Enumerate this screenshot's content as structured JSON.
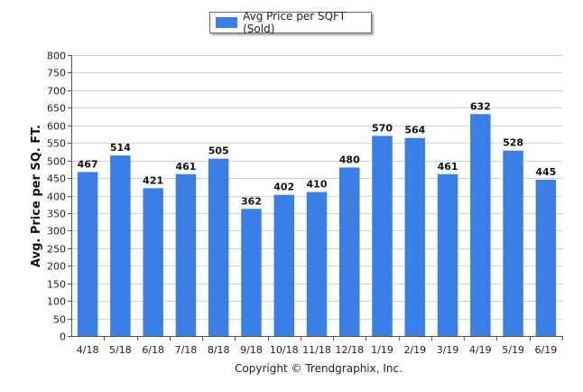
{
  "chart_data": {
    "type": "bar",
    "legend": "Avg Price per SQFT (Sold)",
    "ylabel": "Avg. Price per SQ. FT.",
    "xlabel": "",
    "ylim": [
      0,
      800
    ],
    "yticks": [
      0,
      50,
      100,
      150,
      200,
      250,
      300,
      350,
      400,
      450,
      500,
      550,
      600,
      650,
      700,
      750,
      800
    ],
    "grid": true,
    "legend_position": "top-center",
    "categories": [
      "4/18",
      "5/18",
      "6/18",
      "7/18",
      "8/18",
      "9/18",
      "10/18",
      "11/18",
      "12/18",
      "1/19",
      "2/19",
      "3/19",
      "4/19",
      "5/19",
      "6/19"
    ],
    "series": [
      {
        "name": "Avg Price per SQFT (Sold)",
        "values": [
          467,
          514,
          421,
          461,
          505,
          362,
          402,
          410,
          480,
          570,
          564,
          461,
          632,
          528,
          445
        ],
        "color": "#3a7fe6"
      }
    ]
  },
  "footer": {
    "copyright": "Copyright © Trendgraphix, Inc."
  },
  "colors": {
    "bar": "#3a7fe6",
    "grid": "#d4d4d4",
    "axis": "#555555"
  }
}
